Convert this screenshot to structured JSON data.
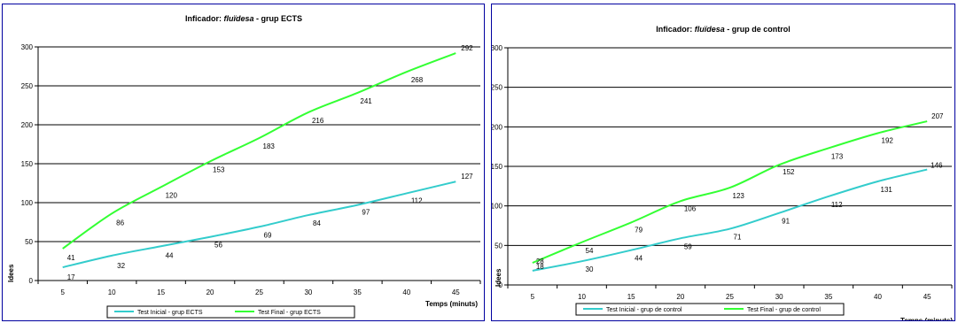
{
  "chart_data": [
    {
      "type": "line",
      "title_prefix": "Inficador: ",
      "title_italic": "fluïdesa",
      "title_suffix": " - grup ECTS",
      "xlabel": "Temps (minuts)",
      "ylabel": "Idees",
      "x": [
        5,
        10,
        15,
        20,
        25,
        30,
        35,
        40,
        45
      ],
      "ylim": [
        0,
        300
      ],
      "yticks": [
        0,
        50,
        100,
        150,
        200,
        250,
        300
      ],
      "grid": true,
      "legend_position": "bottom",
      "series": [
        {
          "name": "Test Inicial - grup ECTS",
          "color": "#33cccc",
          "values": [
            17,
            32,
            44,
            56,
            69,
            84,
            97,
            112,
            127
          ]
        },
        {
          "name": "Test Final - grup ECTS",
          "color": "#33ff33",
          "values": [
            41,
            86,
            120,
            153,
            183,
            216,
            241,
            268,
            292
          ]
        }
      ]
    },
    {
      "type": "line",
      "title_prefix": "Inficador: ",
      "title_italic": "fluïdesa",
      "title_suffix": " - grup de control",
      "xlabel": "Temps (minuts)",
      "ylabel": "Idees",
      "x": [
        5,
        10,
        15,
        20,
        25,
        30,
        35,
        40,
        45
      ],
      "ylim": [
        0,
        300
      ],
      "yticks": [
        0,
        50,
        100,
        150,
        200,
        250,
        300
      ],
      "grid": true,
      "legend_position": "bottom",
      "series": [
        {
          "name": "Test Inicial - grup de control",
          "color": "#33cccc",
          "values": [
            18,
            30,
            44,
            59,
            71,
            91,
            112,
            131,
            146
          ]
        },
        {
          "name": "Test Final - grup de control",
          "color": "#33ff33",
          "values": [
            28,
            54,
            79,
            106,
            123,
            152,
            173,
            192,
            207
          ]
        }
      ]
    }
  ]
}
